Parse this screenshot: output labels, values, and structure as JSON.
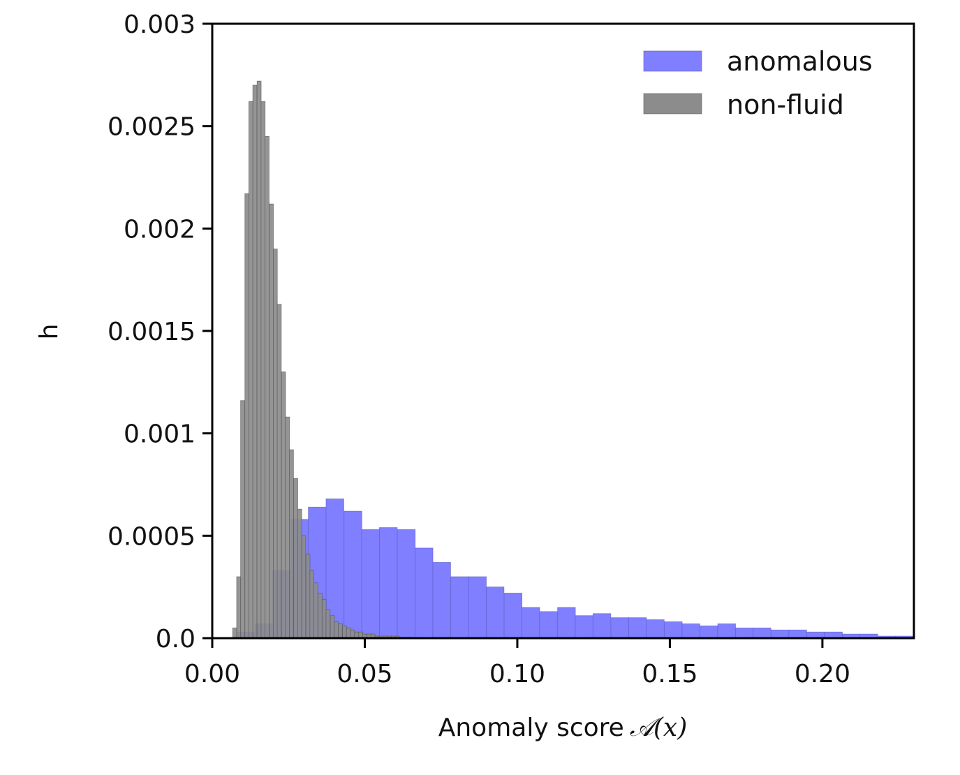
{
  "chart_data": {
    "type": "histogram",
    "title": "",
    "xlabel": "Anomaly score",
    "xlabel_math": "𝒜(x)",
    "ylabel": "h",
    "xlim": [
      0.0,
      0.23
    ],
    "ylim": [
      0.0,
      0.003
    ],
    "x_ticks": [
      0.0,
      0.05,
      0.1,
      0.15,
      0.2
    ],
    "x_tick_labels": [
      "0.00",
      "0.05",
      "0.10",
      "0.15",
      "0.20"
    ],
    "y_ticks": [
      0.0,
      0.0005,
      0.001,
      0.0015,
      0.002,
      0.0025,
      0.003
    ],
    "y_tick_labels": [
      "0.0",
      "0.0005",
      "0.001",
      "0.0015",
      "0.002",
      "0.0025",
      "0.003"
    ],
    "legend_position": "top-right",
    "series": [
      {
        "name": "anomalous",
        "color": "#7f7fff",
        "edge": "#5c5cc6",
        "bin_width": 0.00583,
        "bins_start": [
          0.0082,
          0.014,
          0.0198,
          0.0257,
          0.0315,
          0.0373,
          0.0432,
          0.049,
          0.0548,
          0.0607,
          0.0665,
          0.0723,
          0.0782,
          0.084,
          0.0898,
          0.0957,
          0.1015,
          0.1073,
          0.1132,
          0.119,
          0.1248,
          0.1307,
          0.1365,
          0.1423,
          0.1482,
          0.154,
          0.1598,
          0.1657,
          0.1715,
          0.1773,
          0.1832,
          0.189,
          0.1948,
          0.2007,
          0.2065,
          0.2123,
          0.2182,
          0.224
        ],
        "values": [
          3e-05,
          7e-05,
          0.00033,
          0.00058,
          0.00064,
          0.00068,
          0.00062,
          0.00053,
          0.00054,
          0.00053,
          0.00044,
          0.00037,
          0.0003,
          0.0003,
          0.00025,
          0.00022,
          0.00015,
          0.00013,
          0.00015,
          0.00011,
          0.00012,
          0.0001,
          0.0001,
          9e-05,
          8e-05,
          7e-05,
          6e-05,
          7e-05,
          5e-05,
          5e-05,
          4e-05,
          4e-05,
          3e-05,
          3e-05,
          2e-05,
          2e-05,
          1e-05,
          1e-05
        ]
      },
      {
        "name": "non-fluid",
        "color": "#8c8c8c",
        "edge": "#555555",
        "bin_width": 0.00133,
        "bins_start": [
          0.0067,
          0.008,
          0.0093,
          0.0107,
          0.012,
          0.0133,
          0.0147,
          0.016,
          0.0173,
          0.0187,
          0.02,
          0.0213,
          0.0227,
          0.024,
          0.0253,
          0.0267,
          0.028,
          0.0293,
          0.0307,
          0.032,
          0.0333,
          0.0347,
          0.036,
          0.0373,
          0.0387,
          0.04,
          0.0413,
          0.0427,
          0.044,
          0.0453,
          0.0467,
          0.048,
          0.0493,
          0.0507,
          0.052,
          0.0533,
          0.0547,
          0.056,
          0.0573,
          0.0587,
          0.06,
          0.0613,
          0.0627,
          0.064
        ],
        "values": [
          5e-05,
          0.0003,
          0.00116,
          0.00217,
          0.00262,
          0.0027,
          0.00272,
          0.00262,
          0.00245,
          0.00212,
          0.0019,
          0.00163,
          0.0013,
          0.00108,
          0.00092,
          0.00078,
          0.00063,
          0.0005,
          0.00041,
          0.00033,
          0.00027,
          0.00022,
          0.00019,
          0.00014,
          0.00011,
          8e-05,
          7e-05,
          6e-05,
          5e-05,
          4e-05,
          3e-05,
          3e-05,
          2e-05,
          2e-05,
          2e-05,
          1e-05,
          1e-05,
          1e-05,
          1e-05,
          1e-05,
          1e-05,
          5e-06,
          5e-06,
          5e-06
        ]
      }
    ]
  }
}
